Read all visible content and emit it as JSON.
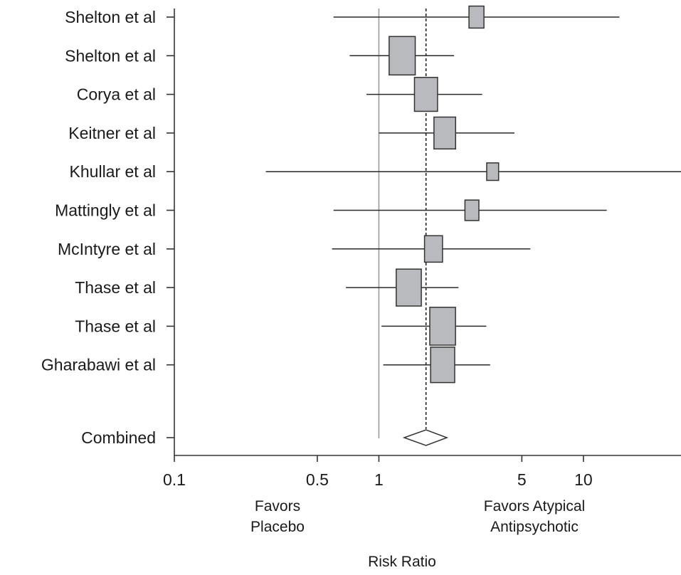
{
  "chart_data": {
    "type": "forest",
    "xlabel": "Risk Ratio",
    "x_scale": "log",
    "xlim": [
      0.1,
      30
    ],
    "x_ticks": [
      {
        "value": 0.1,
        "label": "0.1"
      },
      {
        "value": 0.5,
        "label": "0.5"
      },
      {
        "value": 1,
        "label": "1"
      },
      {
        "value": 5,
        "label": "5"
      },
      {
        "value": 10,
        "label": "10"
      }
    ],
    "reference_value": 1,
    "pooled_value": 1.7,
    "annotations": {
      "left": [
        "Favors",
        "Placebo"
      ],
      "right": [
        "Favors Atypical",
        "Antipsychotic"
      ]
    },
    "studies": [
      {
        "label": "Shelton et al",
        "rr": 3.0,
        "lower": 0.6,
        "upper": 15.0,
        "weight": 0.45
      },
      {
        "label": "Shelton et al",
        "rr": 1.3,
        "lower": 0.72,
        "upper": 2.33,
        "weight": 1.0
      },
      {
        "label": "Corya et al",
        "rr": 1.7,
        "lower": 0.87,
        "upper": 3.2,
        "weight": 0.85
      },
      {
        "label": "Keitner et al",
        "rr": 2.1,
        "lower": 1.0,
        "upper": 4.6,
        "weight": 0.78
      },
      {
        "label": "Khullar et al",
        "rr": 3.6,
        "lower": 0.28,
        "upper": 30.0,
        "weight": 0.3
      },
      {
        "label": "Mattingly et al",
        "rr": 2.85,
        "lower": 0.6,
        "upper": 13.0,
        "weight": 0.4
      },
      {
        "label": "McIntyre et al",
        "rr": 1.85,
        "lower": 0.59,
        "upper": 5.5,
        "weight": 0.6
      },
      {
        "label": "Thase et al",
        "rr": 1.4,
        "lower": 0.69,
        "upper": 2.45,
        "weight": 0.95
      },
      {
        "label": "Thase et al",
        "rr": 2.05,
        "lower": 1.03,
        "upper": 3.35,
        "weight": 0.98
      },
      {
        "label": "Gharabawi et al",
        "rr": 2.05,
        "lower": 1.05,
        "upper": 3.5,
        "weight": 0.9
      }
    ],
    "combined": {
      "label": "Combined",
      "rr": 1.7,
      "lower": 1.33,
      "upper": 2.15
    }
  }
}
